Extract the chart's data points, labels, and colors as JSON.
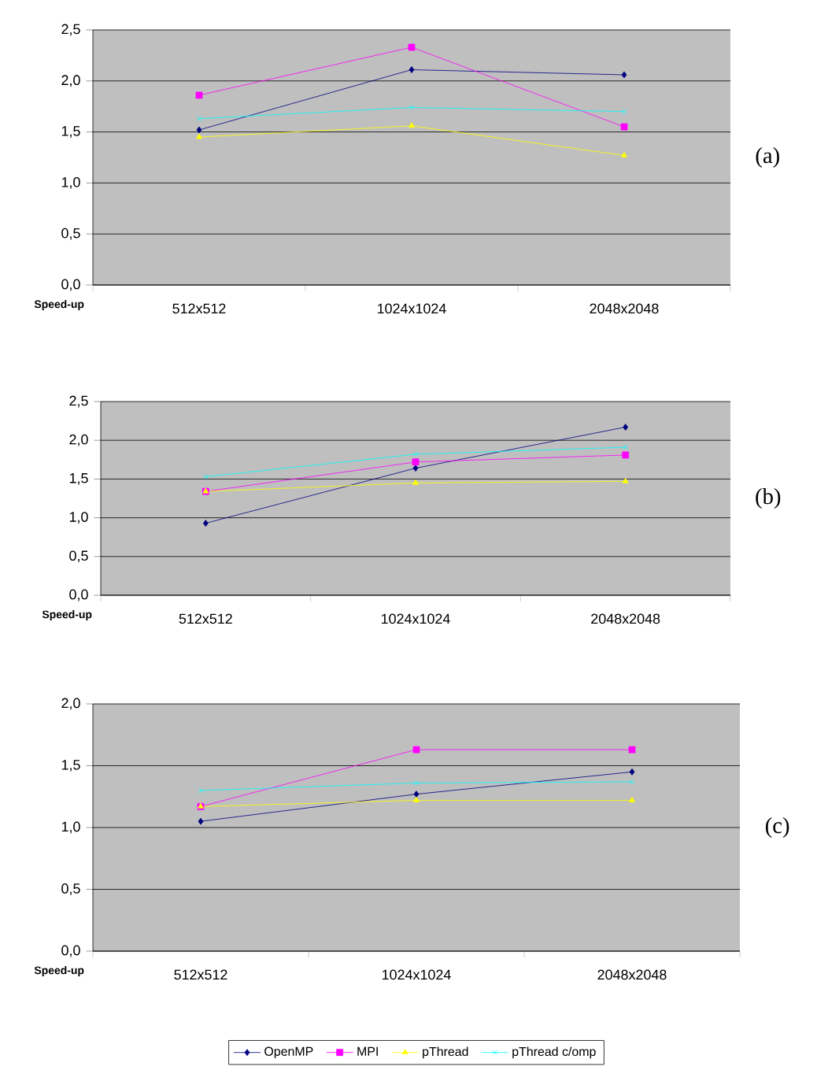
{
  "chart_data": [
    {
      "type": "line",
      "categories": [
        "512x512",
        "1024x1024",
        "2048x2048"
      ],
      "ylabel": "Speed-up",
      "annotations": [
        "(a)"
      ],
      "ylim": [
        0,
        2.5
      ],
      "yticks": [
        {
          "value": 0,
          "label": "0,0"
        },
        {
          "value": 0.5,
          "label": "0,5"
        },
        {
          "value": 1,
          "label": "1,0"
        },
        {
          "value": 1.5,
          "label": "1,5"
        },
        {
          "value": 2,
          "label": "2,0"
        },
        {
          "value": 2.5,
          "label": "2,5"
        }
      ],
      "grid": "y",
      "legend": false,
      "series": [
        {
          "color": "#000080",
          "marker": "diamond",
          "values": [
            1.52,
            2.11,
            2.06
          ]
        },
        {
          "color": "#ff00ff",
          "marker": "square",
          "values": [
            1.86,
            2.33,
            1.55
          ]
        },
        {
          "color": "#ffff00",
          "marker": "triangle",
          "values": [
            1.45,
            1.56,
            1.27
          ]
        },
        {
          "color": "#00ffff",
          "marker": "cross",
          "values": [
            1.63,
            1.74,
            1.7
          ]
        }
      ]
    },
    {
      "type": "line",
      "categories": [
        "512x512",
        "1024x1024",
        "2048x2048"
      ],
      "ylabel": "Speed-up",
      "annotations": [
        "(b)"
      ],
      "ylim": [
        0,
        2.5
      ],
      "yticks": [
        {
          "value": 0,
          "label": "0,0"
        },
        {
          "value": 0.5,
          "label": "0,5"
        },
        {
          "value": 1,
          "label": "1,0"
        },
        {
          "value": 1.5,
          "label": "1,5"
        },
        {
          "value": 2,
          "label": "2,0"
        },
        {
          "value": 2.5,
          "label": "2,5"
        }
      ],
      "grid": "y",
      "legend": false,
      "series": [
        {
          "color": "#000080",
          "marker": "diamond",
          "values": [
            0.93,
            1.64,
            2.17
          ]
        },
        {
          "color": "#ff00ff",
          "marker": "square",
          "values": [
            1.34,
            1.72,
            1.81
          ]
        },
        {
          "color": "#ffff00",
          "marker": "triangle",
          "values": [
            1.34,
            1.45,
            1.47
          ]
        },
        {
          "color": "#00ffff",
          "marker": "cross",
          "values": [
            1.53,
            1.82,
            1.91
          ]
        }
      ]
    },
    {
      "type": "line",
      "categories": [
        "512x512",
        "1024x1024",
        "2048x2048"
      ],
      "ylabel": "Speed-up",
      "annotations": [
        "(c)"
      ],
      "ylim": [
        0,
        2
      ],
      "yticks": [
        {
          "value": 0,
          "label": "0,0"
        },
        {
          "value": 0.5,
          "label": "0,5"
        },
        {
          "value": 1,
          "label": "1,0"
        },
        {
          "value": 1.5,
          "label": "1,5"
        },
        {
          "value": 2,
          "label": "2,0"
        }
      ],
      "grid": "y",
      "legend": "bottom",
      "series": [
        {
          "name": "OpenMP",
          "color": "#000080",
          "marker": "diamond",
          "values": [
            1.05,
            1.27,
            1.45
          ]
        },
        {
          "name": "MPI",
          "color": "#ff00ff",
          "marker": "square",
          "values": [
            1.17,
            1.63,
            1.63
          ]
        },
        {
          "name": "pThread",
          "color": "#ffff00",
          "marker": "triangle",
          "values": [
            1.17,
            1.22,
            1.22
          ]
        },
        {
          "name": "pThread c/omp",
          "color": "#00ffff",
          "marker": "cross",
          "values": [
            1.3,
            1.36,
            1.37
          ]
        }
      ]
    }
  ]
}
